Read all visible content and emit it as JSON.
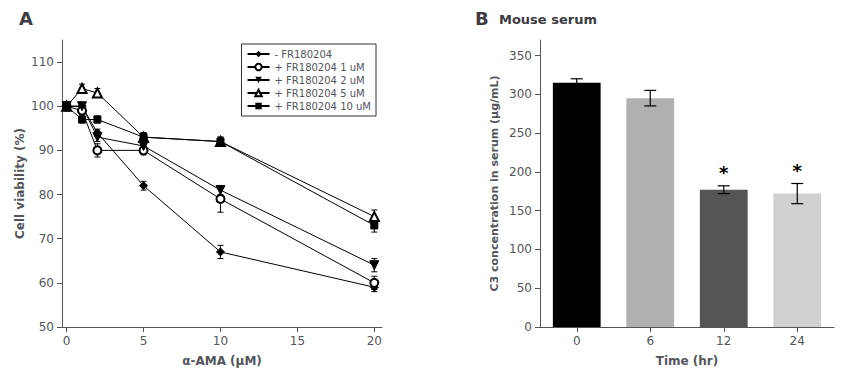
{
  "chart_data": [
    {
      "type": "line",
      "title": "A",
      "xlabel": "α-AMA (μM)",
      "ylabel": "Cell viability (%)",
      "x": [
        0,
        1,
        2,
        5,
        10,
        20
      ],
      "xlim": [
        -0.3,
        20.5
      ],
      "ylim": [
        50,
        115
      ],
      "xticks": [
        0,
        5,
        10,
        15,
        20
      ],
      "yticks": [
        50,
        60,
        70,
        80,
        90,
        100,
        110
      ],
      "grid": false,
      "legend": "upper right",
      "series": [
        {
          "name": "- FR180204",
          "color": "black",
          "marker": "diamond",
          "line_style": "solid",
          "values": [
            100,
            100,
            94,
            82,
            67,
            59
          ],
          "yerr": [
            1,
            0.8,
            0.8,
            1,
            1.5,
            1
          ]
        },
        {
          "name": "+ FR180204 1 uM",
          "color": "black",
          "marker": "open-circle",
          "line_style": "solid",
          "values": [
            100,
            99,
            90,
            90,
            79,
            60
          ],
          "yerr": [
            1,
            0.8,
            1.5,
            1,
            3,
            1.5
          ]
        },
        {
          "name": "+ FR180204 2 uM",
          "color": "black",
          "marker": "triangle-down",
          "line_style": "solid",
          "values": [
            100,
            100,
            93,
            91,
            81,
            64
          ],
          "yerr": [
            1,
            0.8,
            1,
            1,
            1,
            1.5
          ]
        },
        {
          "name": "+ FR180204 5 uM",
          "color": "black",
          "marker": "open-triangle-up",
          "line_style": "solid",
          "values": [
            100,
            104,
            103,
            93,
            92,
            75
          ],
          "yerr": [
            1,
            1,
            1,
            1,
            1,
            1.5
          ]
        },
        {
          "name": "+ FR180204 10 uM",
          "color": "black",
          "marker": "square",
          "line_style": "solid",
          "values": [
            100,
            97,
            97,
            93,
            92,
            73
          ],
          "yerr": [
            1,
            0.8,
            0.8,
            1,
            1,
            1.5
          ]
        }
      ]
    },
    {
      "type": "bar",
      "title": "B",
      "subtitle": "Mouse serum",
      "xlabel": "Time (hr)",
      "ylabel": "C3 concentration in serum (μg/mL)",
      "categories": [
        "0",
        "6",
        "12",
        "24"
      ],
      "values": [
        315,
        295,
        177,
        172
      ],
      "yerr": [
        5,
        10,
        5,
        13
      ],
      "colors": [
        "#000000",
        "#b0b0b0",
        "#555555",
        "#d0d0d0"
      ],
      "ylim": [
        0,
        370
      ],
      "yticks": [
        0,
        50,
        100,
        150,
        200,
        250,
        300,
        350
      ],
      "grid": false,
      "annotations": [
        {
          "category": "12",
          "text": "*"
        },
        {
          "category": "24",
          "text": "*"
        }
      ]
    }
  ]
}
